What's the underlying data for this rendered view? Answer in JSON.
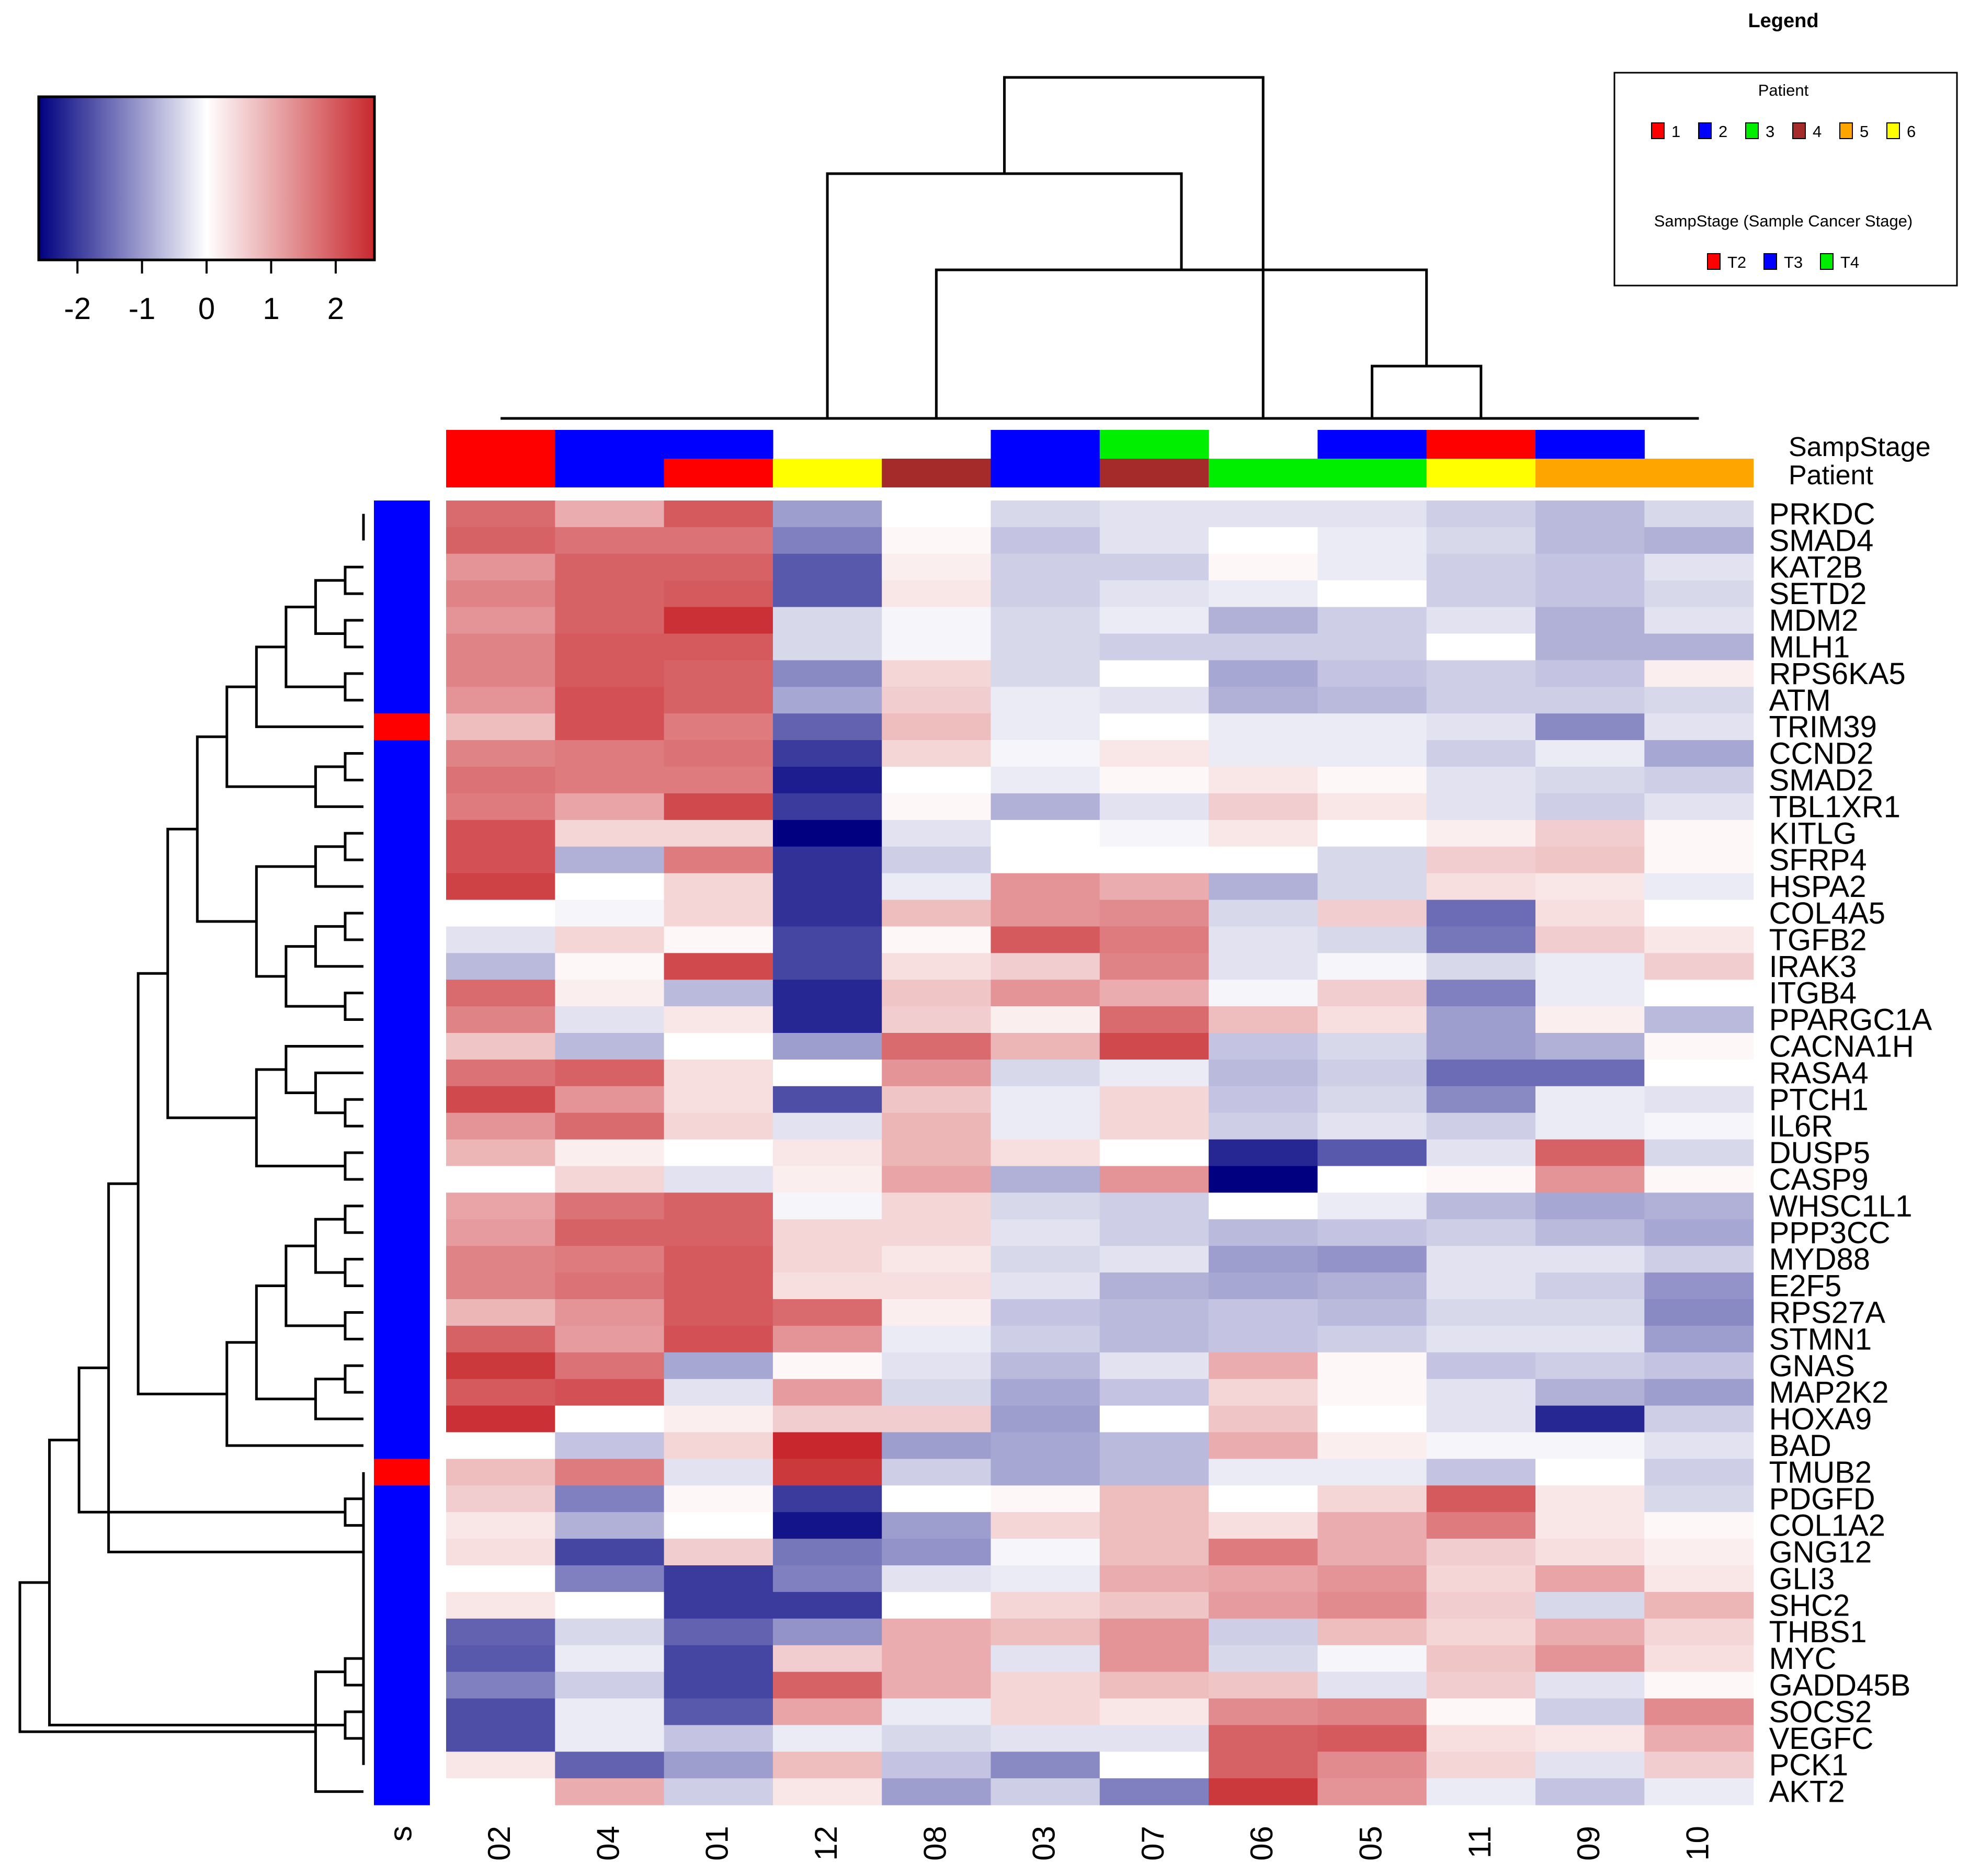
{
  "chart_data": {
    "type": "heatmap",
    "title": "",
    "columns": [
      "02",
      "04",
      "01",
      "12",
      "08",
      "03",
      "07",
      "06",
      "05",
      "11",
      "09",
      "10"
    ],
    "rows": [
      "PRKDC",
      "SMAD4",
      "KAT2B",
      "SETD2",
      "MDM2",
      "MLH1",
      "RPS6KA5",
      "ATM",
      "TRIM39",
      "CCND2",
      "SMAD2",
      "TBL1XR1",
      "KITLG",
      "SFRP4",
      "HSPA2",
      "COL4A5",
      "TGFB2",
      "IRAK3",
      "ITGB4",
      "PPARGC1A",
      "CACNA1H",
      "RASA4",
      "PTCH1",
      "IL6R",
      "DUSP5",
      "CASP9",
      "WHSC1L1",
      "PPP3CC",
      "MYD88",
      "E2F5",
      "RPS27A",
      "STMN1",
      "GNAS",
      "MAP2K2",
      "HOXA9",
      "BAD",
      "TMUB2",
      "PDGFD",
      "COL1A2",
      "GNG12",
      "GLI3",
      "SHC2",
      "THBS1",
      "MYC",
      "GADD45B",
      "SOCS2",
      "VEGFC",
      "PCK1",
      "AKT2"
    ],
    "values": [
      [
        1.8,
        1.0,
        2.0,
        -1.0,
        0.0,
        -0.4,
        -0.3,
        -0.3,
        -0.3,
        -0.5,
        -0.7,
        -0.4
      ],
      [
        1.9,
        1.7,
        1.7,
        -1.3,
        0.1,
        -0.6,
        -0.3,
        0.0,
        -0.2,
        -0.4,
        -0.7,
        -0.8
      ],
      [
        1.3,
        1.9,
        1.9,
        -1.7,
        0.2,
        -0.5,
        -0.5,
        0.1,
        -0.2,
        -0.5,
        -0.6,
        -0.3
      ],
      [
        1.5,
        1.9,
        2.0,
        -1.7,
        0.3,
        -0.5,
        -0.3,
        -0.2,
        0.0,
        -0.5,
        -0.6,
        -0.4
      ],
      [
        1.3,
        1.9,
        2.5,
        -0.4,
        -0.1,
        -0.4,
        -0.2,
        -0.8,
        -0.5,
        -0.3,
        -0.8,
        -0.3
      ],
      [
        1.5,
        2.0,
        2.0,
        -0.4,
        -0.1,
        -0.4,
        -0.5,
        -0.5,
        -0.5,
        0.0,
        -0.8,
        -0.8
      ],
      [
        1.5,
        2.0,
        1.9,
        -1.2,
        0.5,
        -0.4,
        0.0,
        -0.9,
        -0.6,
        -0.5,
        -0.6,
        0.2
      ],
      [
        1.3,
        2.1,
        1.9,
        -0.9,
        0.6,
        -0.2,
        -0.3,
        -0.8,
        -0.7,
        -0.5,
        -0.5,
        -0.4
      ],
      [
        0.8,
        2.1,
        1.6,
        -1.6,
        0.8,
        -0.2,
        0.0,
        -0.2,
        -0.2,
        -0.3,
        -1.2,
        -0.3
      ],
      [
        1.5,
        1.6,
        1.7,
        -2.0,
        0.5,
        -0.1,
        0.3,
        -0.2,
        -0.2,
        -0.5,
        -0.2,
        -0.9
      ],
      [
        1.7,
        1.6,
        1.6,
        -2.3,
        0.0,
        -0.2,
        0.1,
        0.3,
        0.1,
        -0.3,
        -0.4,
        -0.5
      ],
      [
        1.6,
        1.1,
        2.2,
        -2.0,
        0.1,
        -0.8,
        -0.3,
        0.6,
        0.3,
        -0.3,
        -0.5,
        -0.3
      ],
      [
        2.1,
        0.5,
        0.5,
        -2.8,
        -0.3,
        0.0,
        -0.1,
        0.3,
        0.0,
        0.2,
        0.6,
        0.1
      ],
      [
        2.1,
        -0.8,
        1.6,
        -2.1,
        -0.5,
        0.0,
        0.0,
        0.0,
        -0.4,
        0.6,
        0.7,
        0.1
      ],
      [
        2.3,
        0.0,
        0.5,
        -2.1,
        -0.2,
        1.3,
        1.0,
        -0.8,
        -0.4,
        0.4,
        0.3,
        -0.2
      ],
      [
        0.0,
        -0.1,
        0.5,
        -2.1,
        0.8,
        1.3,
        1.4,
        -0.4,
        0.6,
        -1.5,
        0.4,
        0.0
      ],
      [
        -0.3,
        0.5,
        0.1,
        -1.9,
        0.1,
        2.0,
        1.6,
        -0.3,
        -0.4,
        -1.4,
        0.6,
        0.3
      ],
      [
        -0.7,
        0.1,
        2.2,
        -1.9,
        0.4,
        0.6,
        1.5,
        -0.3,
        -0.1,
        -0.4,
        -0.2,
        0.6
      ],
      [
        1.8,
        0.2,
        -0.7,
        -2.2,
        0.7,
        1.3,
        1.0,
        -0.1,
        0.6,
        -1.3,
        -0.2,
        0.0
      ],
      [
        1.5,
        -0.3,
        0.3,
        -2.2,
        0.6,
        0.2,
        1.8,
        0.8,
        0.4,
        -1.0,
        0.2,
        -0.7
      ],
      [
        0.7,
        -0.7,
        0.0,
        -1.0,
        1.8,
        0.9,
        2.2,
        -0.6,
        -0.4,
        -1.0,
        -0.8,
        0.1
      ],
      [
        1.7,
        1.9,
        0.4,
        0.0,
        1.3,
        -0.4,
        -0.2,
        -0.7,
        -0.5,
        -1.5,
        -1.5,
        0.0
      ],
      [
        2.2,
        1.3,
        0.4,
        -1.8,
        0.7,
        -0.2,
        0.5,
        -0.6,
        -0.4,
        -1.2,
        -0.2,
        -0.3
      ],
      [
        1.3,
        1.8,
        0.5,
        -0.3,
        0.9,
        -0.2,
        0.5,
        -0.5,
        -0.3,
        -0.5,
        -0.2,
        -0.1
      ],
      [
        0.9,
        0.2,
        0.0,
        0.3,
        0.9,
        0.4,
        0.0,
        -2.2,
        -1.7,
        -0.3,
        1.9,
        -0.4
      ],
      [
        0.0,
        0.5,
        -0.3,
        0.2,
        1.1,
        -0.8,
        1.3,
        -2.8,
        0.0,
        0.1,
        1.3,
        0.1
      ],
      [
        1.1,
        1.7,
        1.9,
        -0.1,
        0.5,
        -0.4,
        -0.5,
        0.0,
        -0.2,
        -0.7,
        -0.9,
        -0.8
      ],
      [
        1.2,
        1.9,
        1.9,
        0.5,
        0.5,
        -0.3,
        -0.5,
        -0.7,
        -0.6,
        -0.5,
        -0.7,
        -0.9
      ],
      [
        1.5,
        1.6,
        2.0,
        0.5,
        0.3,
        -0.4,
        -0.3,
        -1.0,
        -1.1,
        -0.3,
        -0.3,
        -0.5
      ],
      [
        1.5,
        1.7,
        2.0,
        0.4,
        0.4,
        -0.3,
        -0.8,
        -0.9,
        -0.8,
        -0.3,
        -0.5,
        -1.1
      ],
      [
        0.9,
        1.3,
        2.0,
        1.8,
        0.2,
        -0.6,
        -0.7,
        -0.6,
        -0.7,
        -0.4,
        -0.4,
        -1.2
      ],
      [
        1.9,
        1.2,
        2.1,
        1.3,
        -0.2,
        -0.5,
        -0.7,
        -0.6,
        -0.5,
        -0.3,
        -0.3,
        -1.0
      ],
      [
        2.4,
        1.7,
        -0.9,
        0.1,
        -0.3,
        -0.7,
        -0.3,
        1.0,
        0.1,
        -0.6,
        -0.5,
        -0.6
      ],
      [
        2.0,
        2.1,
        -0.3,
        1.2,
        -0.4,
        -0.9,
        -0.6,
        0.5,
        0.1,
        -0.3,
        -0.8,
        -1.0
      ],
      [
        2.5,
        0.0,
        0.2,
        0.6,
        0.6,
        -1.0,
        0.0,
        0.7,
        0.0,
        -0.3,
        -2.2,
        -0.5
      ],
      [
        0.0,
        -0.6,
        0.5,
        2.6,
        -1.0,
        -0.9,
        -0.7,
        1.0,
        0.2,
        -0.1,
        -0.1,
        -0.3
      ],
      [
        0.8,
        1.6,
        -0.3,
        2.4,
        -0.5,
        -0.9,
        -0.7,
        -0.2,
        -0.2,
        -0.6,
        0.0,
        -0.5
      ],
      [
        0.6,
        -1.3,
        0.1,
        -2.0,
        0.0,
        0.1,
        0.8,
        0.0,
        0.5,
        2.0,
        0.3,
        -0.4
      ],
      [
        0.3,
        -0.8,
        0.0,
        -2.4,
        -1.0,
        0.5,
        0.8,
        0.4,
        1.0,
        1.6,
        0.3,
        0.1
      ],
      [
        0.4,
        -1.9,
        0.6,
        -1.4,
        -1.1,
        -0.1,
        0.8,
        1.6,
        1.0,
        0.6,
        0.4,
        0.2
      ],
      [
        0.0,
        -1.3,
        -2.0,
        -1.3,
        -0.3,
        -0.2,
        1.0,
        1.1,
        1.3,
        0.5,
        1.1,
        0.3
      ],
      [
        0.3,
        0.0,
        -2.0,
        -2.0,
        0.0,
        0.5,
        0.7,
        1.2,
        1.4,
        0.6,
        -0.4,
        0.9
      ],
      [
        -1.6,
        -0.4,
        -1.6,
        -1.1,
        1.0,
        0.8,
        1.3,
        -0.5,
        0.8,
        0.5,
        1.0,
        0.5
      ],
      [
        -1.7,
        -0.2,
        -1.9,
        0.6,
        1.0,
        -0.3,
        1.3,
        -0.4,
        -0.1,
        0.7,
        1.3,
        0.4
      ],
      [
        -1.3,
        -0.5,
        -1.9,
        1.9,
        1.0,
        0.5,
        0.8,
        0.7,
        -0.3,
        0.6,
        -0.3,
        0.1
      ],
      [
        -1.8,
        -0.2,
        -1.7,
        1.1,
        -0.2,
        0.5,
        0.3,
        1.4,
        1.5,
        0.1,
        -0.5,
        1.4
      ],
      [
        -1.8,
        -0.2,
        -0.6,
        -0.2,
        -0.4,
        -0.3,
        -0.3,
        1.9,
        2.0,
        0.4,
        0.3,
        1.0
      ],
      [
        0.3,
        -1.6,
        -1.0,
        0.8,
        -0.6,
        -1.2,
        0.0,
        1.9,
        1.4,
        0.5,
        -0.3,
        0.6
      ],
      [
        0.0,
        1.0,
        -0.5,
        0.3,
        -1.0,
        -0.5,
        -1.3,
        2.4,
        1.3,
        -0.2,
        -0.6,
        -0.2
      ]
    ],
    "col_annotations": {
      "SampStage": [
        "T2",
        "T3",
        "T3",
        "none",
        "none",
        "T3",
        "T4",
        "none",
        "T3",
        "T2",
        "T3",
        "none"
      ],
      "Patient": [
        "1",
        "2",
        "1",
        "6",
        "4",
        "2",
        "4",
        "3",
        "3",
        "6",
        "5",
        "5"
      ]
    },
    "row_annotation": {
      "label": "s",
      "values": [
        "T3",
        "T3",
        "T3",
        "T3",
        "T3",
        "T3",
        "T3",
        "T3",
        "T2",
        "T3",
        "T3",
        "T3",
        "T3",
        "T3",
        "T3",
        "T3",
        "T3",
        "T3",
        "T3",
        "T3",
        "T3",
        "T3",
        "T3",
        "T3",
        "T3",
        "T3",
        "T3",
        "T3",
        "T3",
        "T3",
        "T3",
        "T3",
        "T3",
        "T3",
        "T3",
        "T3",
        "T2",
        "T3",
        "T3",
        "T3",
        "T3",
        "T3",
        "T3",
        "T3",
        "T3",
        "T3",
        "T3",
        "T3",
        "T3"
      ]
    },
    "col_annotation_labels": [
      "SampStage",
      "Patient"
    ],
    "color_scale": {
      "min": -2.6,
      "max": 2.6,
      "low": "#000080",
      "mid": "#ffffff",
      "high": "#c8282d",
      "ticks": [
        "-2",
        "-1",
        "0",
        "1",
        "2"
      ]
    },
    "legend": {
      "title": "Legend",
      "patient_title": "Patient",
      "patient_items": [
        {
          "label": "1",
          "color": "#ff0000"
        },
        {
          "label": "2",
          "color": "#0000ff"
        },
        {
          "label": "3",
          "color": "#00ee00"
        },
        {
          "label": "4",
          "color": "#a52a2a"
        },
        {
          "label": "5",
          "color": "#ffa500"
        },
        {
          "label": "6",
          "color": "#ffff00"
        }
      ],
      "stage_title": "SampStage (Sample Cancer Stage)",
      "stage_items": [
        {
          "label": "T2",
          "color": "#ff0000"
        },
        {
          "label": "T3",
          "color": "#0000ff"
        },
        {
          "label": "T4",
          "color": "#00ee00"
        }
      ]
    },
    "col_dendrogram": [
      [
        1,
        2
      ],
      [
        2,
        12
      ],
      [
        8,
        9
      ],
      [
        0,
        13
      ],
      [
        10,
        11
      ],
      [
        4,
        14
      ],
      [
        5,
        6
      ],
      [
        15,
        16
      ],
      [
        3,
        17
      ],
      [
        18,
        19
      ],
      [
        7,
        20
      ]
    ],
    "row_dendrogram": [
      [
        0,
        1
      ],
      [
        2,
        3
      ],
      [
        4,
        5
      ],
      [
        6,
        7
      ],
      [
        50,
        51
      ],
      [
        52,
        53
      ],
      [
        54,
        8
      ],
      [
        9,
        10
      ],
      [
        56,
        11
      ],
      [
        55,
        57
      ],
      [
        12,
        13
      ],
      [
        59,
        14
      ],
      [
        15,
        16
      ],
      [
        61,
        17
      ],
      [
        18,
        19
      ],
      [
        62,
        63
      ],
      [
        60,
        64
      ],
      [
        58,
        65
      ],
      [
        22,
        23
      ],
      [
        21,
        67
      ],
      [
        68,
        20
      ],
      [
        24,
        25
      ],
      [
        69,
        70
      ],
      [
        66,
        71
      ],
      [
        26,
        27
      ],
      [
        28,
        29
      ],
      [
        73,
        74
      ],
      [
        30,
        31
      ],
      [
        75,
        76
      ],
      [
        32,
        33
      ],
      [
        78,
        34
      ],
      [
        77,
        79
      ],
      [
        35,
        80
      ],
      [
        72,
        81
      ],
      [
        37,
        38
      ],
      [
        82,
        39
      ],
      [
        40,
        41
      ],
      [
        83,
        84
      ],
      [
        85,
        42
      ],
      [
        43,
        44
      ],
      [
        45,
        46
      ],
      [
        87,
        47
      ],
      [
        88,
        48
      ],
      [
        86,
        89
      ],
      [
        36,
        90
      ],
      [
        91,
        92
      ]
    ]
  }
}
